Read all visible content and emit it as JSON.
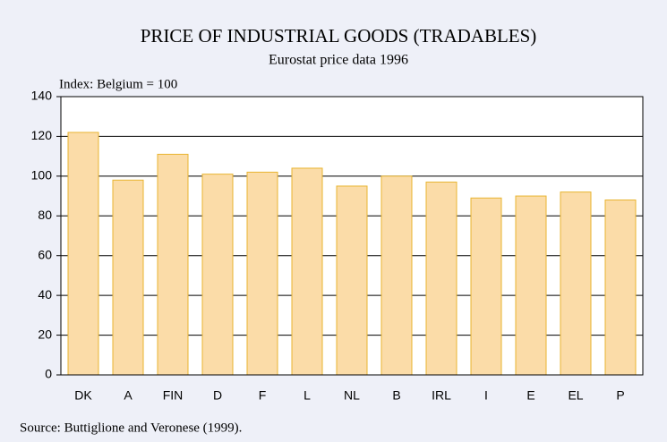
{
  "chart_data": {
    "type": "bar",
    "title": "PRICE OF INDUSTRIAL GOODS (TRADABLES)",
    "subtitle": "Eurostat price data 1996",
    "y_label": "Index: Belgium = 100",
    "source": "Source: Buttiglione and Veronese (1999).",
    "categories": [
      "DK",
      "A",
      "FIN",
      "D",
      "F",
      "L",
      "NL",
      "B",
      "IRL",
      "I",
      "E",
      "EL",
      "P"
    ],
    "values": [
      122,
      98,
      111,
      101,
      102,
      104,
      95,
      100,
      97,
      89,
      90,
      92,
      88
    ],
    "color": "#fbdca8",
    "ylim": [
      0,
      140
    ],
    "yticks": [
      0,
      20,
      40,
      60,
      80,
      100,
      120,
      140
    ],
    "grid": true
  }
}
